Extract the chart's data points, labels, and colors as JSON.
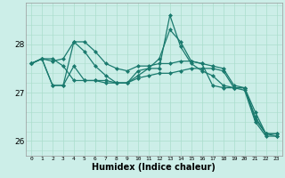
{
  "xlabel": "Humidex (Indice chaleur)",
  "ylabel": "",
  "background_color": "#cceee8",
  "grid_color": "#aaddcc",
  "line_color": "#1a7a6e",
  "x": [
    0,
    1,
    2,
    3,
    4,
    5,
    6,
    7,
    8,
    9,
    10,
    11,
    12,
    13,
    14,
    15,
    16,
    17,
    18,
    19,
    20,
    21,
    22,
    23
  ],
  "series": [
    [
      27.6,
      27.7,
      27.65,
      27.7,
      28.05,
      28.05,
      27.85,
      27.6,
      27.5,
      27.45,
      27.55,
      27.55,
      27.6,
      27.6,
      27.65,
      27.65,
      27.6,
      27.55,
      27.5,
      27.15,
      27.1,
      26.6,
      26.15,
      26.15
    ],
    [
      27.6,
      27.7,
      27.15,
      27.15,
      28.05,
      27.85,
      27.55,
      27.35,
      27.2,
      27.2,
      27.45,
      27.5,
      27.7,
      28.3,
      28.05,
      27.65,
      27.6,
      27.15,
      27.1,
      27.1,
      27.1,
      26.5,
      26.15,
      26.15
    ],
    [
      27.6,
      27.7,
      27.15,
      27.15,
      27.55,
      27.25,
      27.25,
      27.25,
      27.2,
      27.2,
      27.35,
      27.5,
      27.5,
      28.6,
      27.95,
      27.6,
      27.45,
      27.35,
      27.15,
      27.1,
      27.1,
      26.45,
      26.15,
      26.1
    ],
    [
      27.6,
      27.7,
      27.7,
      27.55,
      27.25,
      27.25,
      27.25,
      27.2,
      27.2,
      27.2,
      27.3,
      27.35,
      27.4,
      27.4,
      27.45,
      27.5,
      27.5,
      27.5,
      27.45,
      27.1,
      27.05,
      26.4,
      26.1,
      26.1
    ]
  ],
  "ylim": [
    25.7,
    28.85
  ],
  "yticks": [
    26,
    27,
    28
  ],
  "xtick_labels": [
    "0",
    "1",
    "2",
    "3",
    "4",
    "5",
    "6",
    "7",
    "8",
    "9",
    "10",
    "11",
    "12",
    "13",
    "14",
    "15",
    "16",
    "17",
    "18",
    "19",
    "20",
    "21",
    "22",
    "23"
  ],
  "marker": "D",
  "markersize": 2.0,
  "linewidth": 0.9
}
